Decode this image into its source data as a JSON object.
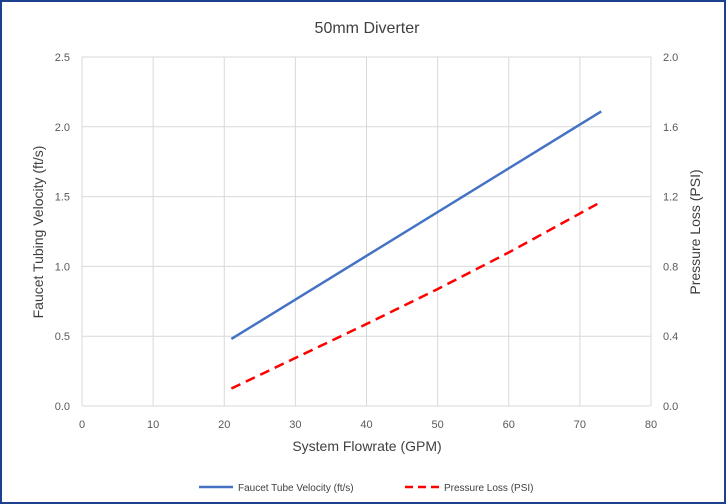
{
  "chart_data": {
    "type": "line",
    "title": "50mm Diverter",
    "xlabel": "System Flowrate (GPM)",
    "ylabel": "Faucet Tubing Velocity (ft/s)",
    "y2label": "Pressure Loss (PSI)",
    "xlim": [
      0,
      80
    ],
    "ylim": [
      0,
      2.5
    ],
    "y2lim": [
      0,
      2.0
    ],
    "xticks": [
      "0",
      "10",
      "20",
      "30",
      "40",
      "50",
      "60",
      "70",
      "80"
    ],
    "yticks": [
      "0.0",
      "0.5",
      "1.0",
      "1.5",
      "2.0",
      "2.5"
    ],
    "y2ticks": [
      "0.0",
      "0.4",
      "0.8",
      "1.2",
      "1.6",
      "2.0"
    ],
    "grid": true,
    "legend": "bottom",
    "series": [
      {
        "name": "Faucet Tube Velocity (ft/s)",
        "axis": "left",
        "style": "solid",
        "color": "#4472c4",
        "x": [
          21,
          73
        ],
        "y": [
          0.48,
          2.11
        ]
      },
      {
        "name": "Pressure Loss (PSI)",
        "axis": "right",
        "style": "dashed",
        "color": "#ff0000",
        "x": [
          21,
          40,
          50,
          60,
          73
        ],
        "y": [
          0.1,
          0.47,
          0.67,
          0.88,
          1.17
        ]
      }
    ]
  }
}
